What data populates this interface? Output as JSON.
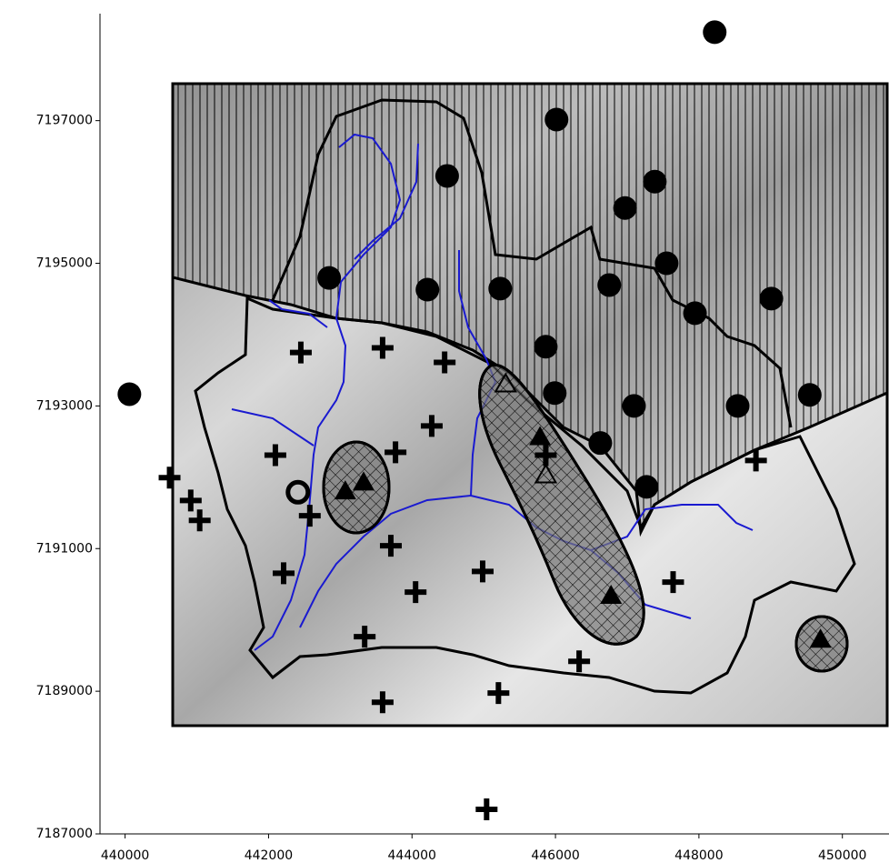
{
  "chart_data": {
    "type": "scatter",
    "xlim": [
      439650,
      450650
    ],
    "ylim": [
      7187000,
      7198500
    ],
    "xticks": [
      440000,
      442000,
      444000,
      446000,
      448000,
      450000
    ],
    "yticks": [
      7187000,
      7189000,
      7191000,
      7193000,
      7195000,
      7197000
    ],
    "series": [
      {
        "marker": "circle",
        "color": "#000000",
        "x": [
          448220,
          440060,
          446015,
          444490,
          446970,
          447385,
          447550,
          442845,
          444215,
          445230,
          446750,
          447945,
          449010,
          445865,
          445990,
          447095,
          448540,
          449545,
          446625,
          447270
        ],
        "y": [
          7198240,
          7193165,
          7197015,
          7196225,
          7195775,
          7196145,
          7195000,
          7194795,
          7194630,
          7194645,
          7194695,
          7194300,
          7194505,
          7193830,
          7193180,
          7193000,
          7193000,
          7193155,
          7192480,
          7191865
        ]
      },
      {
        "marker": "cross",
        "color": "#000000",
        "x": [
          442450,
          443590,
          444455,
          444275,
          443770,
          442095,
          440620,
          440915,
          441040,
          442575,
          443705,
          445865,
          448795,
          442210,
          444985,
          444050,
          447640,
          443340,
          446330,
          445205,
          443590,
          445040
        ],
        "y": [
          7193750,
          7193815,
          7193610,
          7192720,
          7192350,
          7192310,
          7191995,
          7191675,
          7191395,
          7191460,
          7191040,
          7192310,
          7192235,
          7190655,
          7190680,
          7190390,
          7190530,
          7189765,
          7189420,
          7188975,
          7188845,
          7187345
        ]
      },
      {
        "marker": "triangle",
        "color": "#000000",
        "x": [
          443070,
          443325,
          445785,
          446775,
          449695
        ],
        "y": [
          7191805,
          7191930,
          7192565,
          7190340,
          7189725
        ]
      },
      {
        "marker": "open-triangle",
        "color": "#000000",
        "x": [
          445865,
          445305
        ],
        "y": [
          7192030,
          7193305
        ]
      },
      {
        "marker": "open-circle",
        "color": "#000000",
        "x": [
          442410
        ],
        "y": [
          7191790
        ]
      }
    ]
  }
}
